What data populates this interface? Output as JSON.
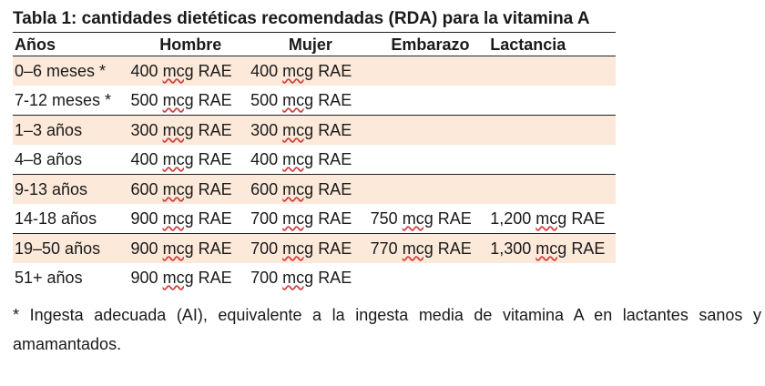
{
  "title": "Tabla 1: cantidades dietéticas recomendadas (RDA) para la vitamina A",
  "columns": [
    "Años",
    "Hombre",
    "Mujer",
    "Embarazo",
    "Lactancia"
  ],
  "rows": [
    {
      "age": "0–6 meses *",
      "hombre": [
        "400",
        "mcg",
        "RAE"
      ],
      "mujer": [
        "400",
        "mcg",
        "RAE"
      ],
      "embarazo": null,
      "lactancia": null
    },
    {
      "age": "7-12 meses *",
      "hombre": [
        "500",
        "mcg",
        "RAE"
      ],
      "mujer": [
        "500",
        "mcg",
        "RAE"
      ],
      "embarazo": null,
      "lactancia": null
    },
    {
      "age": "1–3 años",
      "hombre": [
        "300",
        "mcg",
        "RAE"
      ],
      "mujer": [
        "300",
        "mcg",
        "RAE"
      ],
      "embarazo": null,
      "lactancia": null
    },
    {
      "age": "4–8 años",
      "hombre": [
        "400",
        "mcg",
        "RAE"
      ],
      "mujer": [
        "400",
        "mcg",
        "RAE"
      ],
      "embarazo": null,
      "lactancia": null
    },
    {
      "age": "9-13 años",
      "hombre": [
        "600",
        "mcg",
        "RAE"
      ],
      "mujer": [
        "600",
        "mcg",
        "RAE"
      ],
      "embarazo": null,
      "lactancia": null
    },
    {
      "age": "14-18 años",
      "hombre": [
        "900",
        "mcg",
        "RAE"
      ],
      "mujer": [
        "700",
        "mcg",
        "RAE"
      ],
      "embarazo": [
        "750",
        "mcg",
        "RAE"
      ],
      "lactancia": [
        "1,200",
        "mcg",
        "RAE"
      ]
    },
    {
      "age": "19–50 años",
      "hombre": [
        "900",
        "mcg",
        "RAE"
      ],
      "mujer": [
        "700",
        "mcg",
        "RAE"
      ],
      "embarazo": [
        "770",
        "mcg",
        "RAE"
      ],
      "lactancia": [
        "1,300",
        "mcg",
        "RAE"
      ]
    },
    {
      "age": "51+ años",
      "hombre": [
        "900",
        "mcg",
        "RAE"
      ],
      "mujer": [
        "700",
        "mcg",
        "RAE"
      ],
      "embarazo": null,
      "lactancia": null
    }
  ],
  "footnote": "* Ingesta adecuada (AI), equivalente a la ingesta media de vitamina A en lactantes sanos y amamantados.",
  "colors": {
    "row_shade": "#fce9d9",
    "rule": "#222222",
    "spell_underline": "#d04040"
  }
}
